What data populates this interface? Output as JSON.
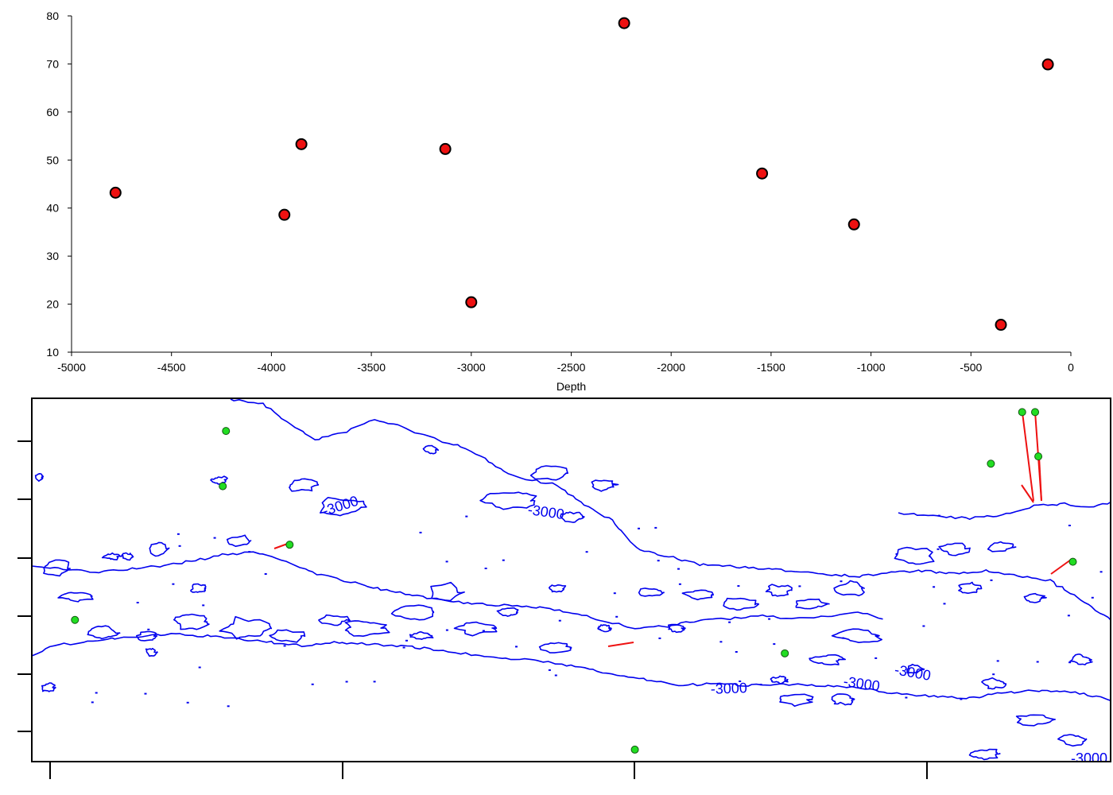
{
  "chart_data": [
    {
      "type": "scatter",
      "xlabel": "Depth",
      "ylabel": "",
      "xlim": [
        -5000,
        0
      ],
      "ylim": [
        10,
        80
      ],
      "x_ticks": [
        -5000,
        -4500,
        -4000,
        -3500,
        -3000,
        -2500,
        -2000,
        -1500,
        -1000,
        -500,
        0
      ],
      "y_ticks": [
        10,
        20,
        30,
        40,
        50,
        60,
        70,
        80
      ],
      "grid": false,
      "marker_color": "#ee1111",
      "points": [
        {
          "x": -4780,
          "y": 43.2
        },
        {
          "x": -3935,
          "y": 38.6
        },
        {
          "x": -3850,
          "y": 53.3
        },
        {
          "x": -3130,
          "y": 52.3
        },
        {
          "x": -3000,
          "y": 20.4
        },
        {
          "x": -2235,
          "y": 78.5
        },
        {
          "x": -1545,
          "y": 47.2
        },
        {
          "x": -1085,
          "y": 36.6
        },
        {
          "x": -350,
          "y": 15.7
        },
        {
          "x": -115,
          "y": 69.9
        }
      ]
    },
    {
      "type": "map",
      "contour_color": "#0000ee",
      "site_color": "#22dd22",
      "link_color": "#ee1111",
      "contour_labels": [
        "-3000",
        "-3000",
        "-3000",
        "-3000",
        "-3000",
        "-3000"
      ],
      "sites": [
        {
          "x": 0.18,
          "y": 0.91
        },
        {
          "x": 0.04,
          "y": 0.39
        },
        {
          "x": 0.239,
          "y": 0.597
        },
        {
          "x": 0.177,
          "y": 0.758
        },
        {
          "x": 0.698,
          "y": 0.298
        },
        {
          "x": 0.559,
          "y": 0.033
        },
        {
          "x": 0.889,
          "y": 0.82
        },
        {
          "x": 0.918,
          "y": 0.962
        },
        {
          "x": 0.93,
          "y": 0.962
        },
        {
          "x": 0.933,
          "y": 0.84
        },
        {
          "x": 0.965,
          "y": 0.55
        }
      ]
    }
  ]
}
